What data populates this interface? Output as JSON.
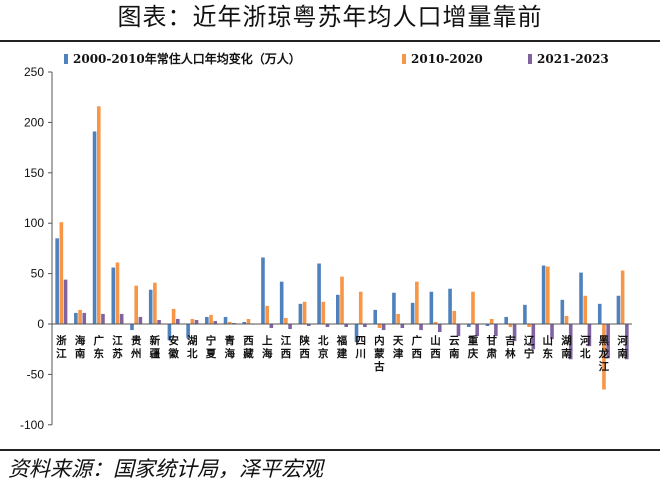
{
  "page": {
    "title": "图表：近年浙琼粤苏年均人口增量靠前",
    "source": "资料来源：国家统计局，泽平宏观"
  },
  "colors": {
    "series1": "#4F81BD",
    "series2": "#F79646",
    "series3": "#8064A2",
    "axis": "#555555"
  },
  "chart_data": {
    "type": "bar",
    "ylim": [
      -100,
      250
    ],
    "yticks": [
      -100,
      -50,
      0,
      50,
      100,
      150,
      200,
      250
    ],
    "grid": false,
    "legend": "top",
    "categories": [
      "浙江",
      "海南",
      "广东",
      "江苏",
      "贵州",
      "新疆",
      "安徽",
      "湖北",
      "宁夏",
      "青海",
      "西藏",
      "上海",
      "江西",
      "陕西",
      "北京",
      "福建",
      "四川",
      "内蒙古",
      "天津",
      "广西",
      "山西",
      "云南",
      "重庆",
      "甘肃",
      "吉林",
      "辽宁",
      "山东",
      "湖南",
      "河北",
      "黑龙江",
      "河南"
    ],
    "series": [
      {
        "name": "2000-2010年常住人口年均变化（万人）",
        "values": [
          85,
          11,
          191,
          56,
          -6,
          34,
          -16,
          -14,
          7,
          7,
          2,
          66,
          42,
          20,
          60,
          29,
          -18,
          14,
          31,
          21,
          32,
          35,
          -3,
          -2,
          7,
          19,
          58,
          24,
          51,
          20,
          28
        ]
      },
      {
        "name": "2010-2020",
        "values": [
          101,
          14,
          216,
          61,
          38,
          41,
          15,
          5,
          9,
          2,
          5,
          18,
          6,
          22,
          22,
          47,
          32,
          -4,
          10,
          42,
          2,
          13,
          32,
          5,
          -3,
          -3,
          57,
          8,
          28,
          -65,
          53
        ]
      },
      {
        "name": "2021-2023",
        "values": [
          44,
          11,
          10,
          10,
          7,
          4,
          5,
          4,
          3,
          1,
          0,
          -4,
          -5,
          -2,
          -3,
          -3,
          -3,
          -6,
          -4,
          -6,
          -8,
          -12,
          -12,
          -12,
          -17,
          -25,
          -15,
          -35,
          -22,
          -34,
          -35
        ]
      }
    ]
  }
}
